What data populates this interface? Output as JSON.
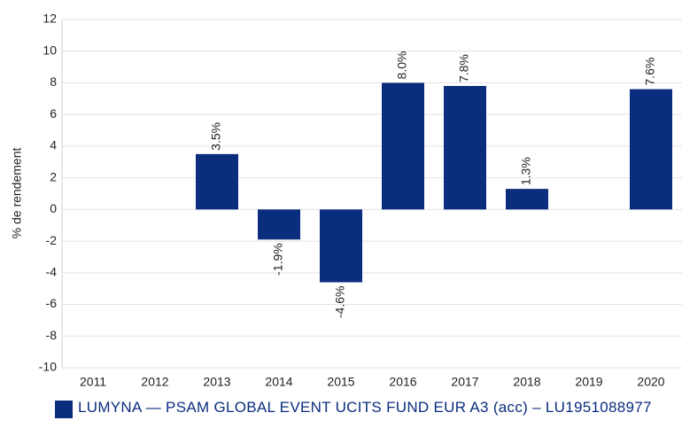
{
  "chart_data": {
    "type": "bar",
    "y_label": "% de rendement",
    "categories": [
      "2011",
      "2012",
      "2013",
      "2014",
      "2015",
      "2016",
      "2017",
      "2018",
      "2019",
      "2020"
    ],
    "series": [
      {
        "name": "LUMYNA — PSAM GLOBAL EVENT UCITS FUND EUR A3 (acc) – LU1951088977",
        "color": "#0b2d7e",
        "values": [
          null,
          null,
          3.5,
          -1.9,
          -4.6,
          8.0,
          7.8,
          1.3,
          null,
          7.6
        ],
        "value_labels": [
          null,
          null,
          "3.5%",
          "-1.9%",
          "-4.6%",
          "8.0%",
          "7.8%",
          "1.3%",
          null,
          "7.6%"
        ]
      }
    ],
    "ylim": [
      -10,
      12
    ],
    "yticks": [
      -10,
      -8,
      -6,
      -4,
      -2,
      0,
      2,
      4,
      6,
      8,
      10,
      12
    ],
    "grid": true
  }
}
